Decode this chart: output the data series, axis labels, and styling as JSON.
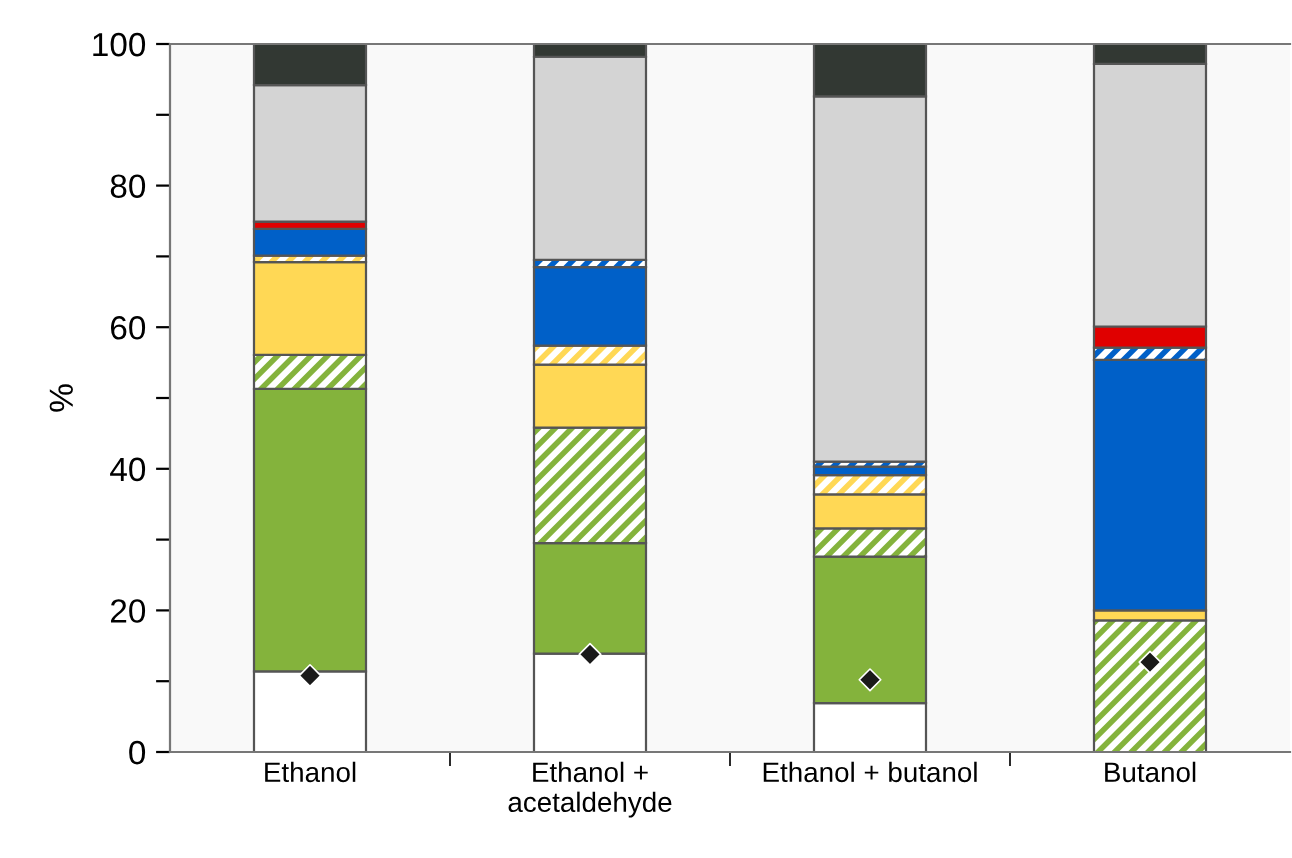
{
  "chart_data": {
    "type": "bar",
    "stacked": true,
    "ylabel": "%",
    "categories": [
      "Ethanol",
      "Ethanol +\nacetaldehyde",
      "Ethanol + butanol",
      "Butanol"
    ],
    "ylim": [
      0,
      100
    ],
    "yticks": [
      0,
      {
        "value": 10,
        "label": null
      },
      20,
      {
        "value": 30,
        "label": null
      },
      40,
      {
        "value": 50,
        "label": null
      },
      60,
      {
        "value": 70,
        "label": null
      },
      80,
      {
        "value": 90,
        "label": null
      },
      100
    ],
    "grid": false,
    "legend": false,
    "series": [
      {
        "color": "#ffffff",
        "values": [
          11.4,
          13.9,
          6.9,
          0
        ]
      },
      {
        "color": "#84b33c",
        "values": [
          39.9,
          15.6,
          20.7,
          0
        ]
      },
      {
        "color": "#84b33c",
        "values": [
          4.8,
          16.3,
          4.0,
          18.6
        ]
      },
      {
        "color": "#ffd855",
        "values": [
          13.1,
          8.9,
          4.8,
          1.4
        ]
      },
      {
        "color": "#ffd855",
        "values": [
          0.9,
          2.7,
          2.7,
          0
        ]
      },
      {
        "color": "#0060c8",
        "values": [
          3.8,
          11.1,
          1.2,
          35.4
        ]
      },
      {
        "color": "#0060c8",
        "values": [
          0,
          1.0,
          0.7,
          1.7
        ]
      },
      {
        "color": "#e00000",
        "values": [
          1.0,
          0,
          0,
          3.0
        ]
      },
      {
        "color": "#d4d4d4",
        "values": [
          19.3,
          28.7,
          51.6,
          37.1
        ]
      },
      {
        "color": "#323833",
        "values": [
          5.8,
          1.8,
          7.4,
          2.8
        ]
      },
      {
        "type": "scatter",
        "marker": "diamond",
        "color": "#1a1a1a",
        "x": [
          "Ethanol",
          "Ethanol +\nacetaldehyde",
          "Ethanol + butanol",
          "Butanol"
        ],
        "values": [
          10.8,
          13.8,
          10.2,
          12.7
        ]
      }
    ]
  }
}
